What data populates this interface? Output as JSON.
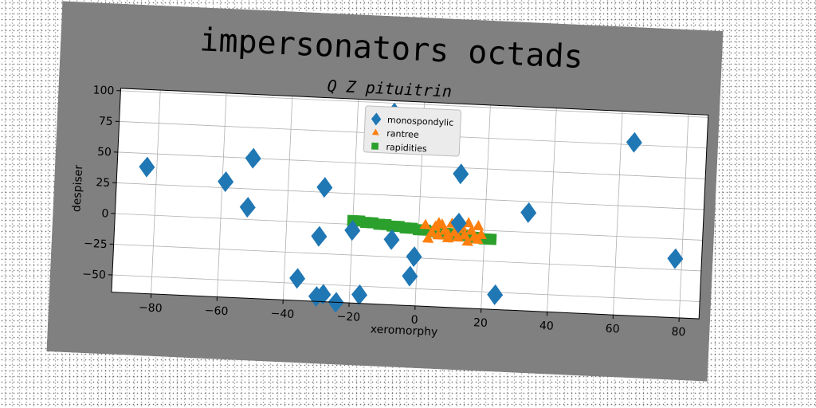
{
  "chart_data": {
    "type": "scatter",
    "title": "impersonators octads",
    "subtitle": "Q Z pituitrin",
    "xlabel": "xeromorphy",
    "ylabel": "despiser",
    "xlim": [
      -92,
      86
    ],
    "ylim": [
      -64,
      102
    ],
    "xticks": [
      -80,
      -60,
      -40,
      -20,
      0,
      20,
      40,
      60,
      80
    ],
    "yticks": [
      -50,
      -25,
      0,
      25,
      50,
      75,
      100
    ],
    "grid": true,
    "legend_position": "top-center",
    "colors": {
      "figure_bg": "#808080",
      "plot_bg": "#ffffff"
    },
    "series": [
      {
        "name": "monospondylic",
        "marker": "diamond",
        "color": "#1f77b4",
        "points": [
          [
            -83,
            39
          ],
          [
            -59,
            30
          ],
          [
            -51,
            50
          ],
          [
            -52,
            10
          ],
          [
            -29,
            29
          ],
          [
            -30,
            -11
          ],
          [
            -36,
            -46
          ],
          [
            -28,
            -58
          ],
          [
            -30,
            -60
          ],
          [
            -24,
            -64
          ],
          [
            -17,
            -57
          ],
          [
            -20,
            -5
          ],
          [
            -8,
            -11
          ],
          [
            -1,
            -24
          ],
          [
            -2,
            -40
          ],
          [
            12,
            45
          ],
          [
            12,
            5
          ],
          [
            24,
            -52
          ],
          [
            33,
            16
          ],
          [
            64,
            77
          ],
          [
            78,
            -16
          ],
          [
            -9,
            92
          ]
        ]
      },
      {
        "name": "rantree",
        "marker": "triangle",
        "color": "#ff7f0e",
        "points": [
          [
            2,
            2
          ],
          [
            4,
            -4
          ],
          [
            5,
            1
          ],
          [
            6,
            -6
          ],
          [
            7,
            3
          ],
          [
            8,
            -2
          ],
          [
            9,
            -8
          ],
          [
            10,
            4
          ],
          [
            11,
            -3
          ],
          [
            12,
            -7
          ],
          [
            13,
            2
          ],
          [
            14,
            -5
          ],
          [
            15,
            5
          ],
          [
            16,
            -1
          ],
          [
            17,
            -6
          ],
          [
            18,
            3
          ],
          [
            19,
            -4
          ],
          [
            3,
            -9
          ],
          [
            6,
            4
          ],
          [
            9,
            -5
          ],
          [
            12,
            0
          ],
          [
            15,
            -10
          ],
          [
            18,
            -8
          ]
        ]
      },
      {
        "name": "rapidities",
        "marker": "square",
        "color": "#2ca02c",
        "points": [
          [
            -20,
            3
          ],
          [
            -18,
            3
          ],
          [
            -16,
            2
          ],
          [
            -14,
            2
          ],
          [
            -12,
            1
          ],
          [
            -10,
            1
          ],
          [
            -8,
            0
          ],
          [
            -6,
            0
          ],
          [
            -4,
            -1
          ],
          [
            -2,
            -1
          ],
          [
            0,
            -2
          ],
          [
            2,
            -2
          ],
          [
            4,
            -3
          ],
          [
            6,
            -3
          ],
          [
            8,
            -4
          ],
          [
            10,
            -4
          ],
          [
            12,
            -5
          ],
          [
            14,
            -5
          ],
          [
            16,
            -6
          ],
          [
            18,
            -6
          ],
          [
            20,
            -7
          ],
          [
            22,
            -7
          ]
        ]
      }
    ]
  }
}
